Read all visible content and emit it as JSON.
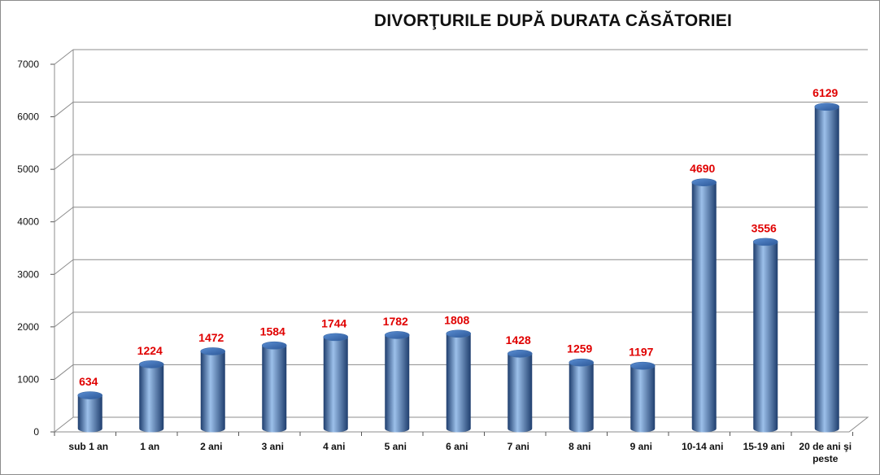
{
  "chart_data": {
    "type": "bar",
    "title": "DIVORŢURILE DUPĂ DURATA CĂSĂTORIEI",
    "xlabel": "",
    "ylabel": "",
    "categories": [
      "sub 1 an",
      "1 an",
      "2 ani",
      "3 ani",
      "4 ani",
      "5 ani",
      "6 ani",
      "7 ani",
      "8 ani",
      "9 ani",
      "10-14 ani",
      "15-19 ani",
      "20 de ani şi peste"
    ],
    "category_lines": [
      [
        "sub 1 an"
      ],
      [
        "1 an"
      ],
      [
        "2 ani"
      ],
      [
        "3 ani"
      ],
      [
        "4 ani"
      ],
      [
        "5 ani"
      ],
      [
        "6 ani"
      ],
      [
        "7 ani"
      ],
      [
        "8 ani"
      ],
      [
        "9 ani"
      ],
      [
        "10-14 ani"
      ],
      [
        "15-19 ani"
      ],
      [
        "20 de ani şi",
        "peste"
      ]
    ],
    "values": [
      634,
      1224,
      1472,
      1584,
      1744,
      1782,
      1808,
      1428,
      1259,
      1197,
      4690,
      3556,
      6129
    ],
    "data_labels": [
      "634",
      "1224",
      "1472",
      "1584",
      "1744",
      "1782",
      "1808",
      "1428",
      "1259",
      "1197",
      "4690",
      "3556",
      "6129"
    ],
    "ylim": [
      0,
      7000
    ],
    "yticks": [
      0,
      1000,
      2000,
      3000,
      4000,
      5000,
      6000,
      7000
    ],
    "ytick_labels": [
      "0",
      "1000",
      "2000",
      "3000",
      "4000",
      "5000",
      "6000",
      "7000"
    ],
    "grid": true,
    "legend": "none",
    "bar_shape": "cylinder",
    "colors": {
      "bar": "#4f81bd",
      "bar_dark": "#1f3e6e",
      "bar_light": "#9cc0ea",
      "data_label": "#e00000",
      "grid": "#8c8c8c",
      "text": "#111111"
    }
  }
}
